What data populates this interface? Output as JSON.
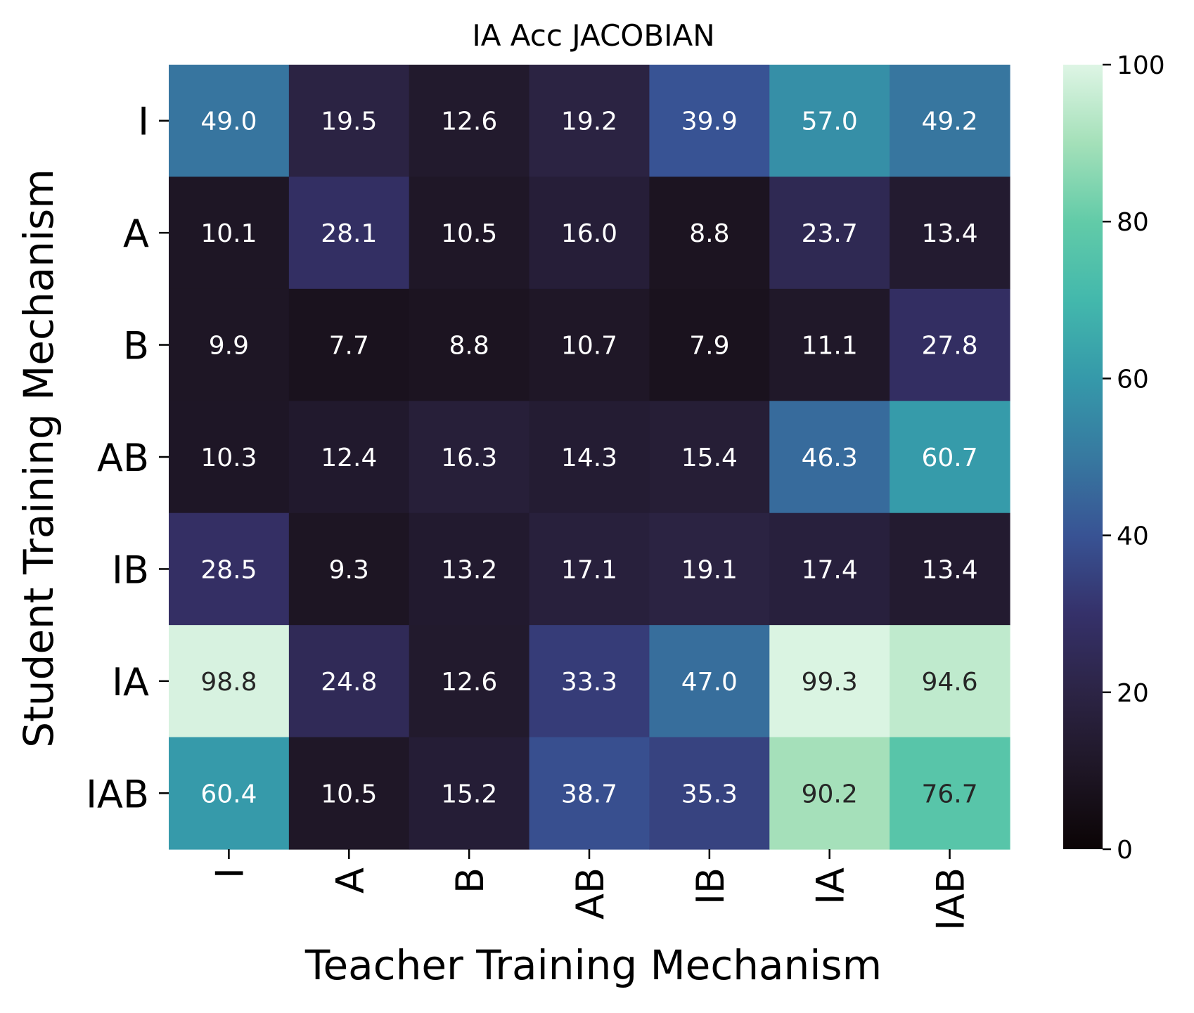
{
  "chart_data": {
    "type": "heatmap",
    "title": "IA Acc JACOBIAN",
    "xlabel": "Teacher Training Mechanism",
    "ylabel": "Student Training Mechanism",
    "x_categories": [
      "I",
      "A",
      "B",
      "AB",
      "IB",
      "IA",
      "IAB"
    ],
    "y_categories": [
      "I",
      "A",
      "B",
      "AB",
      "IB",
      "IA",
      "IAB"
    ],
    "values": [
      [
        49.0,
        19.5,
        12.6,
        19.2,
        39.9,
        57.0,
        49.2
      ],
      [
        10.1,
        28.1,
        10.5,
        16.0,
        8.8,
        23.7,
        13.4
      ],
      [
        9.9,
        7.7,
        8.8,
        10.7,
        7.9,
        11.1,
        27.8
      ],
      [
        10.3,
        12.4,
        16.3,
        14.3,
        15.4,
        46.3,
        60.7
      ],
      [
        28.5,
        9.3,
        13.2,
        17.1,
        19.1,
        17.4,
        13.4
      ],
      [
        98.8,
        24.8,
        12.6,
        33.3,
        47.0,
        99.3,
        94.6
      ],
      [
        60.4,
        10.5,
        15.2,
        38.7,
        35.3,
        90.2,
        76.7
      ]
    ],
    "value_format": "0.1",
    "colorbar": {
      "min": 0,
      "max": 100,
      "ticks": [
        0,
        20,
        40,
        60,
        80,
        100
      ]
    },
    "colormap": "mako",
    "colormap_stops": [
      {
        "v": 0,
        "color": "#0b0405"
      },
      {
        "v": 10,
        "color": "#1e1625"
      },
      {
        "v": 20,
        "color": "#2c2445"
      },
      {
        "v": 30,
        "color": "#35316a"
      },
      {
        "v": 40,
        "color": "#385394"
      },
      {
        "v": 50,
        "color": "#3779a0"
      },
      {
        "v": 60,
        "color": "#3599aa"
      },
      {
        "v": 70,
        "color": "#43b8ac"
      },
      {
        "v": 80,
        "color": "#62cba8"
      },
      {
        "v": 90,
        "color": "#a4e0b9"
      },
      {
        "v": 100,
        "color": "#def5e5"
      }
    ],
    "text_colors": {
      "light": "#ffffff",
      "dark": "#262626"
    }
  }
}
